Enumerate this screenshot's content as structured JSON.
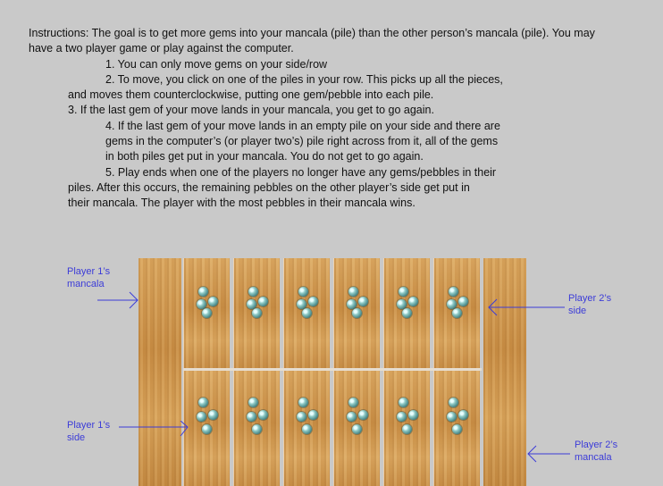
{
  "instructions": {
    "lines": [
      "Instructions: The goal is to get more gems into your mancala (pile) than the other person’s mancala (pile). You may",
      "have a two player game or play against the computer.",
      "1. You can only move gems on your side/row",
      "2. To move, you click on one of the piles in your row. This picks up all the pieces,",
      "and moves them counterclockwise, putting one gem/pebble into each pile.",
      "3. If the last gem of your move lands in your mancala, you get to go again.",
      "4. If the last gem of your move lands in an empty pile on your side and there are",
      "gems in the computer’s (or player two’s) pile right across from it, all of the gems",
      "in both piles get put in your mancala. You do not get to go again.",
      "5. Play ends when one of the players no longer have any gems/pebbles in their",
      "piles. After this occurs, the remaining pebbles on the other player’s side get put in",
      "their mancala. The player with the most pebbles in their mancala wins."
    ]
  },
  "board": {
    "top_row_gems": [
      4,
      4,
      4,
      4,
      4,
      4
    ],
    "bottom_row_gems": [
      4,
      4,
      4,
      4,
      4,
      4
    ],
    "player1_mancala_gems": 0,
    "player2_mancala_gems": 0
  },
  "labels": {
    "player1_mancala": "Player 1’s\nmancala",
    "player1_side": "Player 1’s\nside",
    "player2_side": "Player 2’s\nside",
    "player2_mancala": "Player 2’s\nmancala"
  },
  "colors": {
    "label": "#3c3cd8",
    "background": "#c9c9c9",
    "wood": "#d09a52"
  }
}
